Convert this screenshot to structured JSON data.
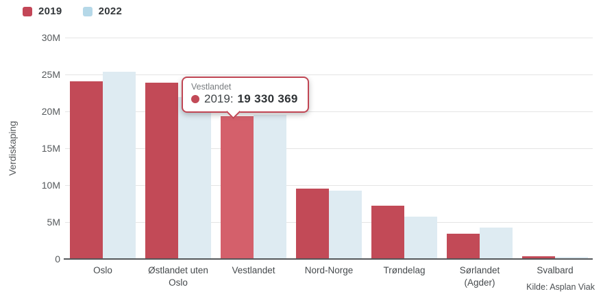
{
  "legend": {
    "swatch_colors": [
      "#c34657",
      "#b5d8e8"
    ]
  },
  "chart_data": {
    "type": "bar",
    "title": "",
    "ylabel": "Verdiskaping",
    "xlabel": "",
    "ylim": [
      0,
      30000000
    ],
    "yticks": [
      "0",
      "5M",
      "10M",
      "15M",
      "20M",
      "25M",
      "30M"
    ],
    "grid": "horizontal",
    "legend_position": "top-left",
    "categories": [
      "Oslo",
      "Østlandet uten Oslo",
      "Vestlandet",
      "Nord-Norge",
      "Trøndelag",
      "Sørlandet (Agder)",
      "Svalbard"
    ],
    "series": [
      {
        "name": "2019",
        "color": "#c24a57",
        "values": [
          24100000,
          23900000,
          19330369,
          9500000,
          7200000,
          3400000,
          400000
        ]
      },
      {
        "name": "2022",
        "color": "#deebf2",
        "values": [
          25400000,
          21900000,
          19500000,
          9300000,
          5700000,
          4300000,
          250000
        ]
      }
    ]
  },
  "highlight": {
    "category": "Vestlandet",
    "series": "2019",
    "color": "#d4606b"
  },
  "tooltip": {
    "title": "Vestlandet",
    "series_label": "2019:",
    "value": "19 330 369"
  },
  "source": {
    "label": "Kilde: Asplan Viak"
  }
}
